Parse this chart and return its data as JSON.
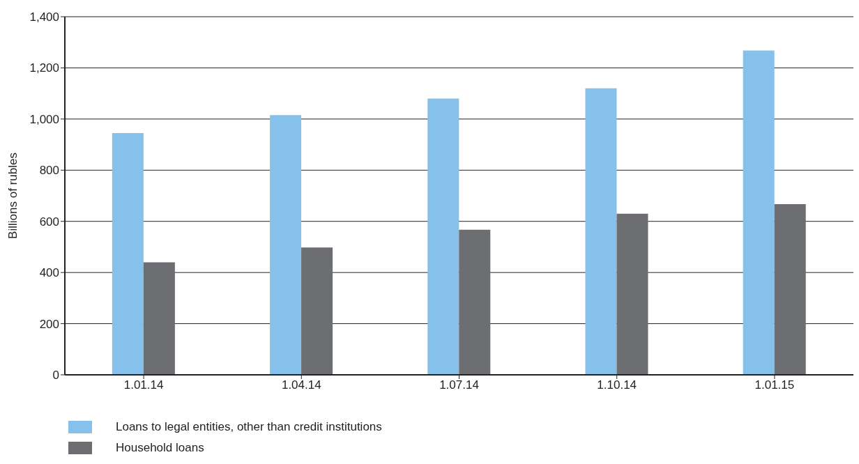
{
  "chart_data": {
    "type": "bar",
    "ylabel": "Billions of rubles",
    "categories": [
      "1.01.14",
      "1.04.14",
      "1.07.14",
      "1.10.14",
      "1.01.15"
    ],
    "series": [
      {
        "name": "Loans to legal entities, other than credit institutions",
        "color": "#85c1ea",
        "values": [
          945,
          1015,
          1080,
          1120,
          1268
        ]
      },
      {
        "name": "Household loans",
        "color": "#6d6e71",
        "values": [
          440,
          498,
          567,
          630,
          667
        ]
      }
    ],
    "ylim": [
      0,
      1400
    ],
    "yticks": [
      {
        "value": 0,
        "label": "0"
      },
      {
        "value": 200,
        "label": "200"
      },
      {
        "value": 400,
        "label": "400"
      },
      {
        "value": 600,
        "label": "600"
      },
      {
        "value": 800,
        "label": "800"
      },
      {
        "value": 1000,
        "label": "1,000"
      },
      {
        "value": 1200,
        "label": "1,200"
      },
      {
        "value": 1400,
        "label": "1,400"
      }
    ],
    "grid": "y",
    "legend": "bottom left"
  }
}
